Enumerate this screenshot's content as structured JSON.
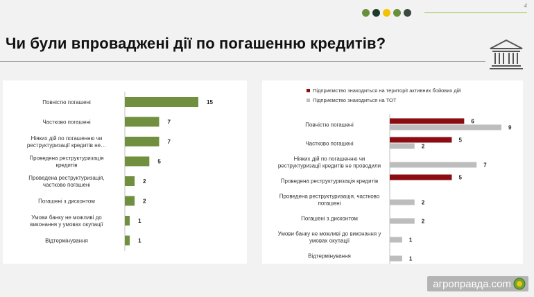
{
  "page": {
    "number": "4"
  },
  "title": "Чи були впроваджені дії по погашенню кредитів?",
  "colors": {
    "dots": [
      "#6a8f3a",
      "#1e3a2a",
      "#f2c300",
      "#6a8f3a",
      "#3a4a42"
    ],
    "bar_green": "#70903f",
    "dark_red": "#8b0d12",
    "gray": "#bdbdbd"
  },
  "icons": {
    "building": "bank-building-icon",
    "logo": "leaf-badge-icon"
  },
  "footer": {
    "brand": "агроправда.com"
  },
  "chart_data": [
    {
      "type": "bar",
      "orientation": "horizontal",
      "categories": [
        [
          "Повністю погашені"
        ],
        [
          "Частково погашені"
        ],
        [
          "Ніяких дій по погашенню чи",
          "реструктуризації кредитів не…"
        ],
        [
          "Проведена реструктуризація",
          "кредитів"
        ],
        [
          "Проведена реструктуризація,",
          "частково погашені"
        ],
        [
          "Погашені з дисконтом"
        ],
        [
          "Умови банку не можливі до",
          "виконання у умовах окупації"
        ],
        [
          "Відтермінування"
        ]
      ],
      "values": [
        15,
        7,
        7,
        5,
        2,
        2,
        1,
        1
      ],
      "xlim": [
        0,
        15
      ]
    },
    {
      "type": "bar",
      "orientation": "horizontal",
      "legend_position": "top-left",
      "categories": [
        [
          "Повністю погашені"
        ],
        [
          "Частково погашені"
        ],
        [
          "Ніяких дій по погашенню чи",
          "реструктуризації кредитів не проводили"
        ],
        [
          "Проведена реструктуризація кредитів"
        ],
        [
          "Проведена реструктуризація, частково",
          "погашені"
        ],
        [
          "Погашені з дисконтом"
        ],
        [
          "Умови банку не можливі до виконання у",
          "умовах окупації"
        ],
        [
          "Відтермінування"
        ]
      ],
      "series": [
        {
          "name": "Підприємство знаходиться  на території активних бойових дій",
          "values": [
            6,
            5,
            null,
            5,
            null,
            null,
            null,
            null
          ]
        },
        {
          "name": "Підприємство знаходиться  на ТОТ",
          "values": [
            9,
            2,
            7,
            null,
            2,
            2,
            1,
            1
          ]
        }
      ],
      "xlim": [
        0,
        9
      ]
    }
  ]
}
